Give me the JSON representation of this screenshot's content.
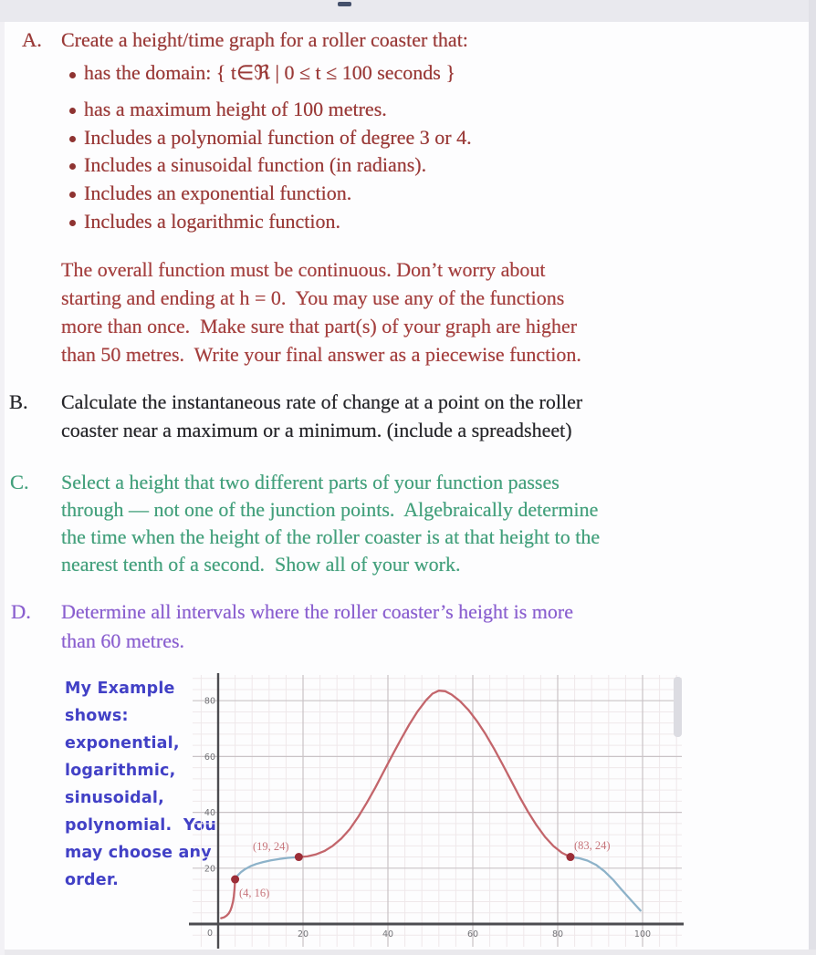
{
  "page": {
    "top_handle_icon": "drag-handle-dash"
  },
  "assignment": {
    "section_a": {
      "label": "A.",
      "title": "Create a height/time graph for a roller coaster that:",
      "bullets": [
        "has the domain: { t∈ℜ | 0 ≤ t ≤ 100 seconds }",
        "has a maximum height of 100 metres.",
        "Includes a polynomial function of degree 3 or 4.",
        "Includes a sinusoidal function (in radians).",
        "Includes an exponential function.",
        "Includes a logarithmic function."
      ],
      "paragraph_lines": [
        "The overall function must be continuous. Don’t worry about",
        "starting and ending at h = 0.  You may use any of the functions",
        "more than once.  Make sure that part(s) of your graph are higher",
        "than 50 metres.  Write your final answer as a piecewise function."
      ]
    },
    "section_b": {
      "label": "B.",
      "lines": [
        "Calculate the instantaneous rate of change at a point on the roller",
        "coaster near a maximum or a minimum. (include a spreadsheet)"
      ]
    },
    "section_c": {
      "label": "C.",
      "lines": [
        "Select a height that two different parts of your function passes",
        "through — not one of the junction points.  Algebraically determine",
        "the time when the height of the roller coaster is at that height to the",
        "nearest tenth of a second.  Show all of your work."
      ]
    },
    "section_d": {
      "label": "D.",
      "lines": [
        "Determine all intervals where the roller coaster’s height is more",
        "than 60 metres."
      ]
    }
  },
  "handwritten_note": {
    "color": "#4241c6",
    "lines": [
      "My Example",
      "shows:",
      "exponential,",
      "logarithmic,",
      "sinusoidal,",
      "polynomial.  You",
      "may choose any",
      "order."
    ]
  },
  "chart_data": {
    "type": "line",
    "title": "",
    "xlabel": "",
    "ylabel": "",
    "xlim": [
      -7,
      110
    ],
    "ylim": [
      -9,
      90
    ],
    "x_ticks": [
      20,
      40,
      60,
      80,
      100
    ],
    "y_ticks": [
      20,
      40,
      60,
      80
    ],
    "origin_label": "0",
    "grid": {
      "minor_step": 4,
      "major_step": 20,
      "minor_color": "#efe8ea",
      "major_color": "#c9c3c6"
    },
    "axis_color": "#4c4c50",
    "tick_label_color": "#737377",
    "point_color": "#9c2e38",
    "point_label_color": "#c7757b",
    "segments": [
      {
        "name": "exponential",
        "color": "#c3656b",
        "points": [
          [
            0.7,
            2.1
          ],
          [
            1.4,
            2.4
          ],
          [
            2.0,
            3.0
          ],
          [
            2.5,
            3.8
          ],
          [
            2.9,
            4.9
          ],
          [
            3.2,
            6.2
          ],
          [
            3.5,
            8.0
          ],
          [
            3.7,
            10.0
          ],
          [
            3.85,
            12.3
          ],
          [
            4,
            16
          ]
        ]
      },
      {
        "name": "logarithmic",
        "color": "#8db2c9",
        "points": [
          [
            4,
            16
          ],
          [
            4.6,
            17.4
          ],
          [
            5.4,
            18.6
          ],
          [
            6.4,
            19.7
          ],
          [
            7.6,
            20.7
          ],
          [
            9,
            21.5
          ],
          [
            10.6,
            22.2
          ],
          [
            12.4,
            22.8
          ],
          [
            14.4,
            23.3
          ],
          [
            16.4,
            23.7
          ],
          [
            19,
            24
          ]
        ]
      },
      {
        "name": "sinusoidal-polynomial",
        "color": "#c3656b",
        "points": [
          [
            19,
            24
          ],
          [
            21,
            24.2
          ],
          [
            23,
            24.9
          ],
          [
            25,
            26.1
          ],
          [
            27,
            28
          ],
          [
            29,
            30.6
          ],
          [
            31,
            34
          ],
          [
            33,
            38.4
          ],
          [
            35,
            43.4
          ],
          [
            37,
            48.8
          ],
          [
            39,
            54.6
          ],
          [
            41,
            60.4
          ],
          [
            43,
            66
          ],
          [
            45,
            71.4
          ],
          [
            47,
            76.2
          ],
          [
            49,
            80.2
          ],
          [
            50.5,
            82.5
          ],
          [
            52,
            83.6
          ],
          [
            53.5,
            83.4
          ],
          [
            55,
            82.2
          ],
          [
            57,
            79.8
          ],
          [
            59,
            76.6
          ],
          [
            61,
            72.6
          ],
          [
            63,
            68
          ],
          [
            65,
            62.8
          ],
          [
            67,
            57.2
          ],
          [
            69,
            51.4
          ],
          [
            71,
            45.6
          ],
          [
            73,
            40.2
          ],
          [
            75,
            35.4
          ],
          [
            77,
            31.2
          ],
          [
            79,
            27.9
          ],
          [
            81,
            25.5
          ],
          [
            83,
            24
          ]
        ]
      },
      {
        "name": "ending-curve",
        "color": "#8db2c9",
        "points": [
          [
            83,
            24
          ],
          [
            85,
            23.6
          ],
          [
            87,
            22.7
          ],
          [
            89,
            21.2
          ],
          [
            91,
            18.9
          ],
          [
            93,
            15.9
          ],
          [
            95,
            12.4
          ],
          [
            97,
            9
          ],
          [
            98.5,
            6.5
          ],
          [
            99.5,
            4.8
          ]
        ]
      }
    ],
    "junction_points": [
      {
        "x": 4,
        "y": 16,
        "label": "(4, 16)"
      },
      {
        "x": 19,
        "y": 24,
        "label": "(19, 24)"
      },
      {
        "x": 83,
        "y": 24,
        "label": "(83, 24)"
      }
    ]
  }
}
